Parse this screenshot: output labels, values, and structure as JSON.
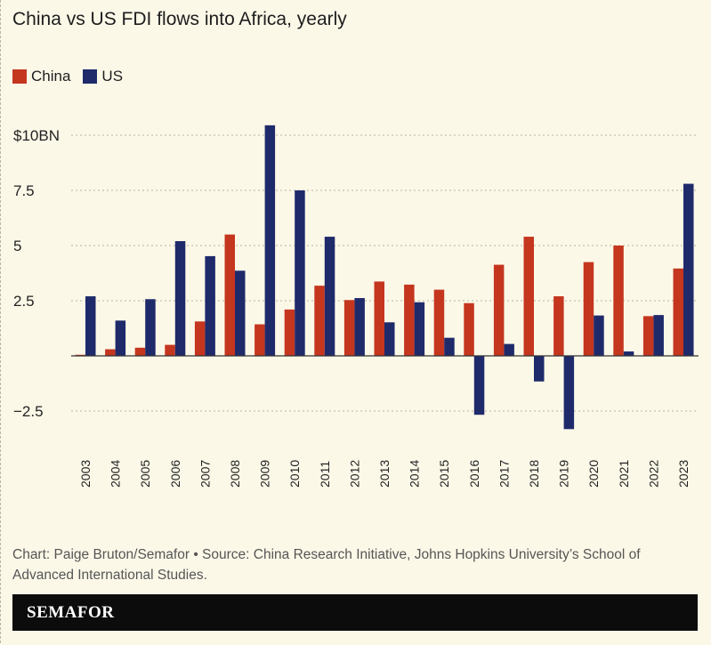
{
  "title": "China vs US FDI flows into Africa, yearly",
  "colors": {
    "China": "#c5361f",
    "US": "#1f2a6b",
    "background": "#fcf8e8"
  },
  "chart_data": {
    "type": "bar",
    "title": "China vs US FDI flows into Africa, yearly",
    "categories": [
      "2003",
      "2004",
      "2005",
      "2006",
      "2007",
      "2008",
      "2009",
      "2010",
      "2011",
      "2012",
      "2013",
      "2014",
      "2015",
      "2016",
      "2017",
      "2018",
      "2019",
      "2020",
      "2021",
      "2022",
      "2023"
    ],
    "series": [
      {
        "name": "China",
        "values": [
          0.05,
          0.3,
          0.37,
          0.5,
          1.56,
          5.5,
          1.43,
          2.1,
          3.18,
          2.53,
          3.37,
          3.23,
          3.0,
          2.39,
          4.13,
          5.4,
          2.7,
          4.25,
          5.0,
          1.8,
          3.96
        ]
      },
      {
        "name": "US",
        "values": [
          2.7,
          1.6,
          2.57,
          5.2,
          4.52,
          3.86,
          10.45,
          7.5,
          5.4,
          2.62,
          1.52,
          2.43,
          0.82,
          -2.67,
          0.54,
          -1.16,
          -3.32,
          1.83,
          0.2,
          1.85,
          7.8
        ]
      }
    ],
    "yticks": [
      {
        "value": -2.5,
        "label": "−2.5"
      },
      {
        "value": 2.5,
        "label": "2.5"
      },
      {
        "value": 5,
        "label": "5"
      },
      {
        "value": 7.5,
        "label": "7.5"
      },
      {
        "value": 10,
        "label": "$10BN"
      }
    ],
    "ylim": [
      -4,
      11
    ],
    "grid": true,
    "legend": "top-left",
    "xlabel": "",
    "ylabel": ""
  },
  "legend": {
    "china": "China",
    "us": "US"
  },
  "footer": {
    "credit": "Chart: Paige Bruton/Semafor • Source: China Research Initiative, Johns Hopkins University’s School of Advanced International Studies."
  },
  "brand": "SEMAFOR"
}
